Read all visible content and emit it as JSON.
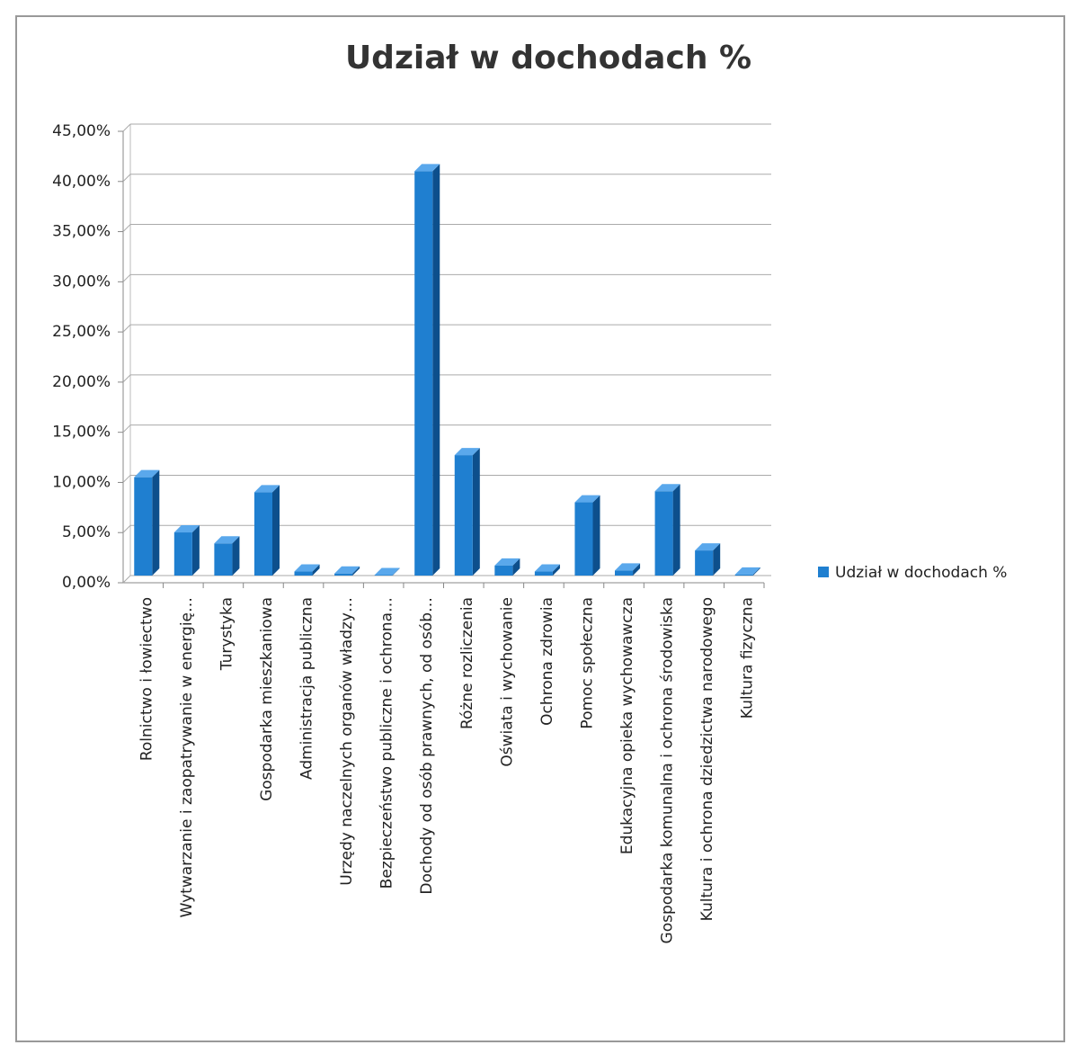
{
  "chart_data": {
    "type": "bar",
    "title": "Udział w dochodach %",
    "categories": [
      "Rolnictwo i łowiectwo",
      "Wytwarzanie i zaopatrywanie w energię…",
      "Turystyka",
      "Gospodarka mieszkaniowa",
      "Administracja publiczna",
      "Urzędy naczelnych organów władzy…",
      "Bezpieczeństwo publiczne i ochrona…",
      "Dochody od osób prawnych, od osób…",
      "Różne rozliczenia",
      "Oświata i wychowanie",
      "Ochrona zdrowia",
      "Pomoc społeczna",
      "Edukacyjna opieka wychowawcza",
      "Gospodarka komunalna i ochrona środowiska",
      "Kultura i ochrona dziedzictwa narodowego",
      "Kultura fizyczna"
    ],
    "series": [
      {
        "name": "Udział w dochodach %",
        "color": "#1f7fd0",
        "values": [
          9.8,
          4.3,
          3.2,
          8.3,
          0.4,
          0.2,
          0.05,
          40.3,
          12.0,
          1.0,
          0.4,
          7.3,
          0.5,
          8.4,
          2.5,
          0.1
        ]
      }
    ],
    "ylim": [
      0,
      45
    ],
    "yticks": [
      {
        "value": 0,
        "label": "0,00%"
      },
      {
        "value": 5,
        "label": "5,00%"
      },
      {
        "value": 10,
        "label": "10,00%"
      },
      {
        "value": 15,
        "label": "15,00%"
      },
      {
        "value": 20,
        "label": "20,00%"
      },
      {
        "value": 25,
        "label": "25,00%"
      },
      {
        "value": 30,
        "label": "30,00%"
      },
      {
        "value": 35,
        "label": "35,00%"
      },
      {
        "value": 40,
        "label": "40,00%"
      },
      {
        "value": 45,
        "label": "45,00%"
      }
    ],
    "grid": true,
    "legend": "right"
  }
}
